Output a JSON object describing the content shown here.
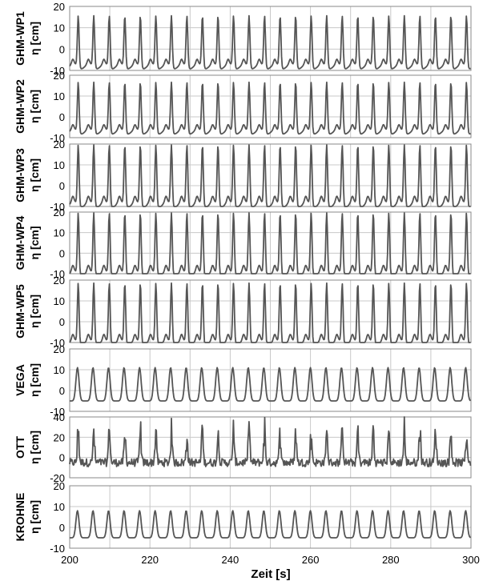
{
  "chart_data": {
    "type": "line",
    "xlabel": "Zeit [s]",
    "xlim": [
      200,
      300
    ],
    "xticks": [
      200,
      220,
      240,
      260,
      280,
      300
    ],
    "grid": true,
    "line_color": "#555555",
    "panels": [
      {
        "name": "GHM-WP1",
        "ylabel_unit": "η  [cm]",
        "ylim": [
          -10,
          20
        ],
        "yticks": [
          -10,
          0,
          10,
          20
        ],
        "period_s": 3.87,
        "crest_cm": 16,
        "trough_cm": -8,
        "shape": "peaked"
      },
      {
        "name": "GHM-WP2",
        "ylabel_unit": "η  [cm]",
        "ylim": [
          -10,
          20
        ],
        "yticks": [
          -10,
          0,
          10,
          20
        ],
        "period_s": 3.87,
        "crest_cm": 17,
        "trough_cm": -7,
        "shape": "peaked"
      },
      {
        "name": "GHM-WP3",
        "ylabel_unit": "η  [cm]",
        "ylim": [
          -10,
          20
        ],
        "yticks": [
          -10,
          0,
          10,
          20
        ],
        "period_s": 3.87,
        "crest_cm": 20,
        "trough_cm": -9,
        "shape": "peaked"
      },
      {
        "name": "GHM-WP4",
        "ylabel_unit": "η  [cm]",
        "ylim": [
          -10,
          20
        ],
        "yticks": [
          -10,
          0,
          10,
          20
        ],
        "period_s": 3.87,
        "crest_cm": 20,
        "trough_cm": -10,
        "shape": "peaked"
      },
      {
        "name": "GHM-WP5",
        "ylabel_unit": "η  [cm]",
        "ylim": [
          -10,
          20
        ],
        "yticks": [
          -10,
          0,
          10,
          20
        ],
        "period_s": 3.87,
        "crest_cm": 19,
        "trough_cm": -10,
        "shape": "peaked"
      },
      {
        "name": "VEGA",
        "ylabel_unit": "η  [cm]",
        "ylim": [
          -10,
          20
        ],
        "yticks": [
          -10,
          0,
          10,
          20
        ],
        "period_s": 3.87,
        "crest_cm": 11,
        "trough_cm": -5,
        "shape": "smooth"
      },
      {
        "name": "OTT",
        "ylabel_unit": "η  [cm]",
        "ylim": [
          -20,
          40
        ],
        "yticks": [
          -20,
          0,
          20,
          40
        ],
        "period_s": 3.87,
        "crest_cm": 25,
        "trough_cm": -8,
        "shape": "noisy"
      },
      {
        "name": "KROHNE",
        "ylabel_unit": "η  [cm]",
        "ylim": [
          -10,
          20
        ],
        "yticks": [
          -10,
          0,
          10,
          20
        ],
        "period_s": 3.87,
        "crest_cm": 8,
        "trough_cm": -5,
        "shape": "smooth"
      }
    ]
  }
}
